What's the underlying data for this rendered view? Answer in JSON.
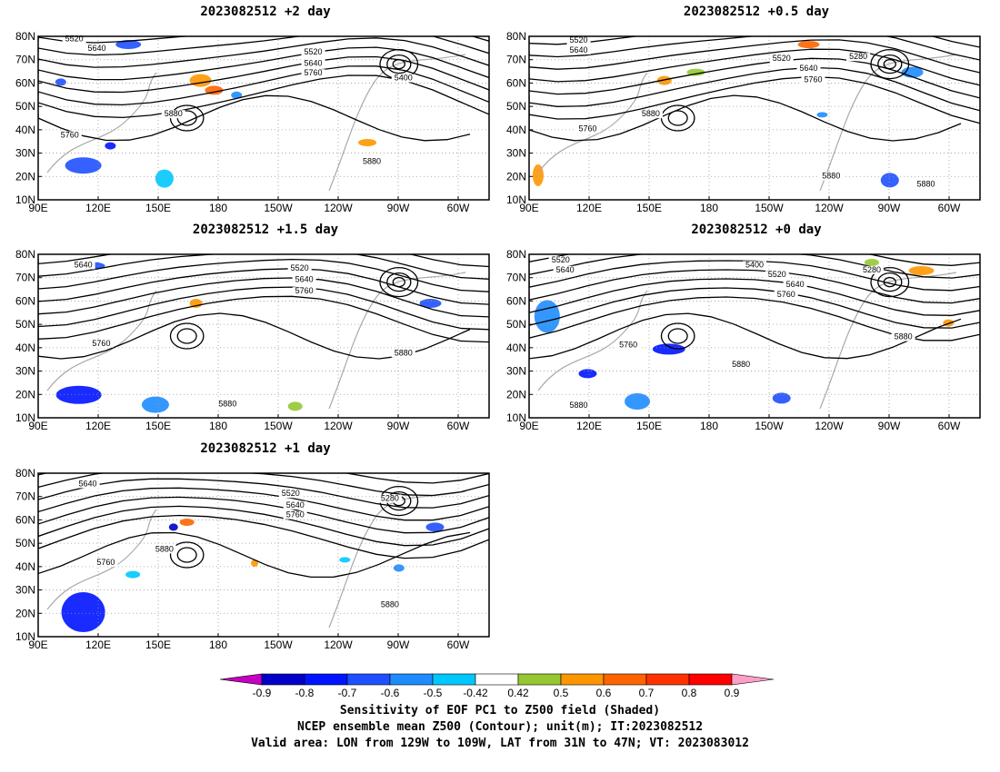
{
  "panels": [
    {
      "title": "2023082512 +2 day"
    },
    {
      "title": "2023082512 +0.5 day"
    },
    {
      "title": "2023082512 +1.5 day"
    },
    {
      "title": "2023082512 +0 day"
    },
    {
      "title": "2023082512 +1 day"
    }
  ],
  "axes": {
    "lat_labels": [
      "80N",
      "70N",
      "60N",
      "50N",
      "40N",
      "30N",
      "20N",
      "10N"
    ],
    "lon_labels": [
      "90E",
      "120E",
      "150E",
      "180",
      "150W",
      "120W",
      "90W",
      "60W"
    ]
  },
  "contour_labels": [
    "5520",
    "5640",
    "5760",
    "5880",
    "5400",
    "5280"
  ],
  "colorbar": {
    "ticks": [
      "-0.9",
      "-0.8",
      "-0.7",
      "-0.6",
      "-0.5",
      "-0.42",
      "0.42",
      "0.5",
      "0.6",
      "0.7",
      "0.8",
      "0.9"
    ],
    "colors": [
      "#c400c4",
      "#0000c8",
      "#0014ff",
      "#1e50ff",
      "#1e8cff",
      "#00c8ff",
      "#ffffff",
      "#96c832",
      "#ff9600",
      "#ff6400",
      "#ff3200",
      "#ff0000",
      "#ff9ec8"
    ]
  },
  "caption": {
    "line1": "Sensitivity of EOF PC1 to Z500 field (Shaded)",
    "line2": "NCEP ensemble mean Z500 (Contour); unit(m); IT:2023082512",
    "line3": "Valid area: LON from 129W to 109W, LAT from 31N to 47N; VT: 2023083012"
  }
}
